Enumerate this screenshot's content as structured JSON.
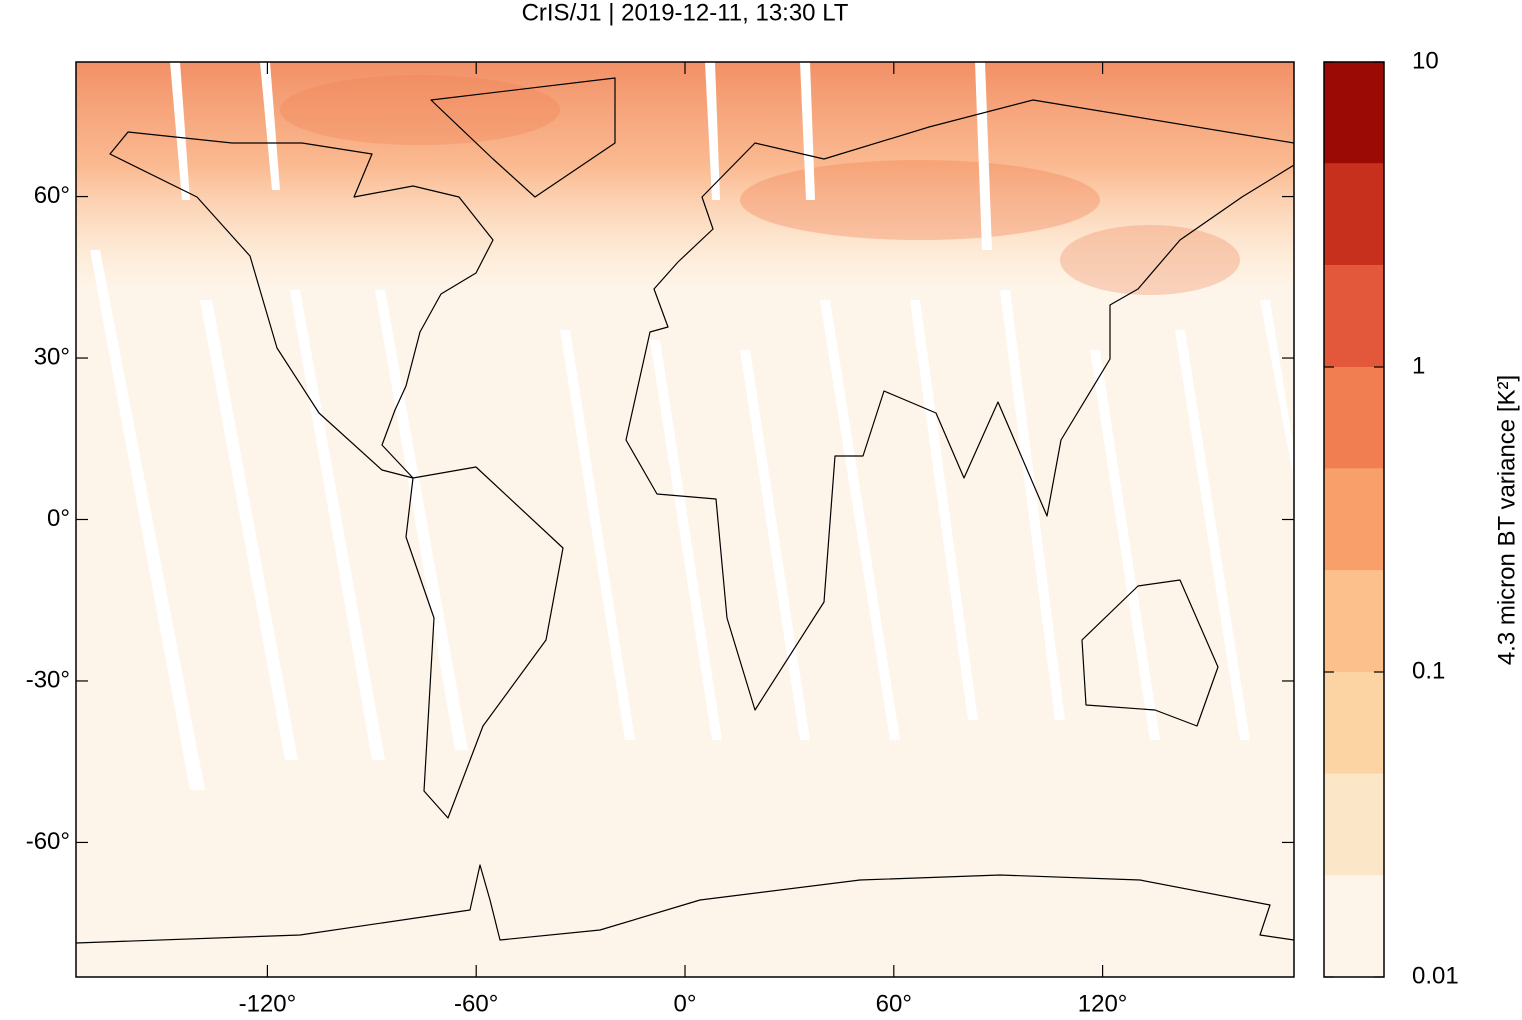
{
  "chart_data": {
    "type": "map",
    "title": "CrIS/J1 | 2019-12-11, 13:30 LT",
    "xlim": [
      -175,
      175
    ],
    "ylim": [
      -85,
      85
    ],
    "xticks": [
      {
        "value": -120,
        "label": "-120°"
      },
      {
        "value": -60,
        "label": "-60°"
      },
      {
        "value": 0,
        "label": "0°"
      },
      {
        "value": 60,
        "label": "60°"
      },
      {
        "value": 120,
        "label": "120°"
      }
    ],
    "yticks": [
      {
        "value": -60,
        "label": "-60°"
      },
      {
        "value": -30,
        "label": "-30°"
      },
      {
        "value": 0,
        "label": "0°"
      },
      {
        "value": 30,
        "label": "30°"
      },
      {
        "value": 60,
        "label": "60°"
      }
    ],
    "colorbar": {
      "label": "4.3 micron BT variance [K²]",
      "log": true,
      "zlim": [
        0.01,
        10
      ],
      "zticks": [
        0.01,
        0.1,
        1,
        10
      ],
      "colors": [
        "#fef5ea",
        "#fce6c8",
        "#fcd3a3",
        "#fcc08c",
        "#f9a06a",
        "#f07e50",
        "#e3583a",
        "#c8301e",
        "#9c0a05"
      ]
    }
  }
}
